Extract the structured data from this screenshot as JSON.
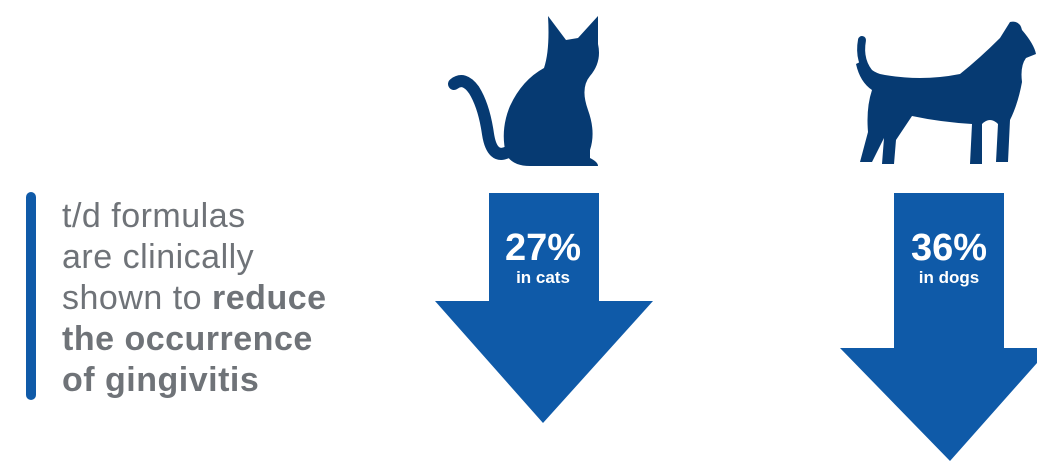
{
  "claim": {
    "line1": "t/d formulas",
    "line2": "are clinically",
    "line3_plain": "shown to ",
    "line3_bold": "reduce",
    "line4": "the occurrence",
    "line5": "of gingivitis"
  },
  "stats": [
    {
      "animal": "cat",
      "percent": "27%",
      "label": "in cats",
      "icon": "cat-icon"
    },
    {
      "animal": "dog",
      "percent": "36%",
      "label": "in dogs",
      "icon": "dog-icon"
    }
  ],
  "colors": {
    "icon": "#063a72",
    "arrow": "#0f5aa8",
    "text": "#6f7378",
    "accent": "#0f5aa8"
  }
}
